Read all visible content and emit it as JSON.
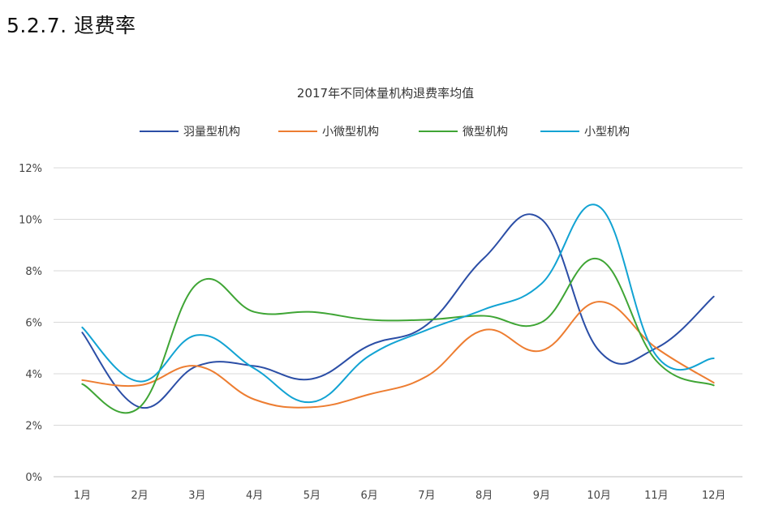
{
  "section": {
    "title": "5.2.7.  退费率"
  },
  "chart_data": {
    "type": "line",
    "title": "2017年不同体量机构退费率均值",
    "categories": [
      "1月",
      "2月",
      "3月",
      "4月",
      "5月",
      "6月",
      "7月",
      "8月",
      "9月",
      "10月",
      "11月",
      "12月"
    ],
    "ylim": [
      0,
      12
    ],
    "y_ticks": [
      0,
      2,
      4,
      6,
      8,
      10,
      12
    ],
    "y_tick_labels": [
      "0%",
      "2%",
      "4%",
      "6%",
      "8%",
      "10%",
      "12%"
    ],
    "y_unit": "%",
    "grid": true,
    "smooth": true,
    "legend_position": "top-center",
    "series": [
      {
        "name": "羽量型机构",
        "color": "#2b4ea6",
        "values": [
          5.6,
          2.7,
          4.3,
          4.3,
          3.8,
          5.1,
          5.9,
          8.5,
          10.0,
          4.9,
          5.0,
          7.0
        ]
      },
      {
        "name": "小微型机构",
        "color": "#ed7d31",
        "values": [
          3.75,
          3.55,
          4.3,
          3.0,
          2.7,
          3.2,
          3.9,
          5.7,
          4.9,
          6.8,
          5.0,
          3.65
        ]
      },
      {
        "name": "微型机构",
        "color": "#3fa535",
        "values": [
          3.6,
          2.7,
          7.5,
          6.4,
          6.4,
          6.1,
          6.1,
          6.25,
          6.0,
          8.45,
          4.5,
          3.55
        ]
      },
      {
        "name": "小型机构",
        "color": "#12a3d3",
        "values": [
          5.8,
          3.7,
          5.5,
          4.2,
          2.9,
          4.7,
          5.7,
          6.5,
          7.5,
          10.5,
          4.7,
          4.6
        ]
      }
    ]
  }
}
